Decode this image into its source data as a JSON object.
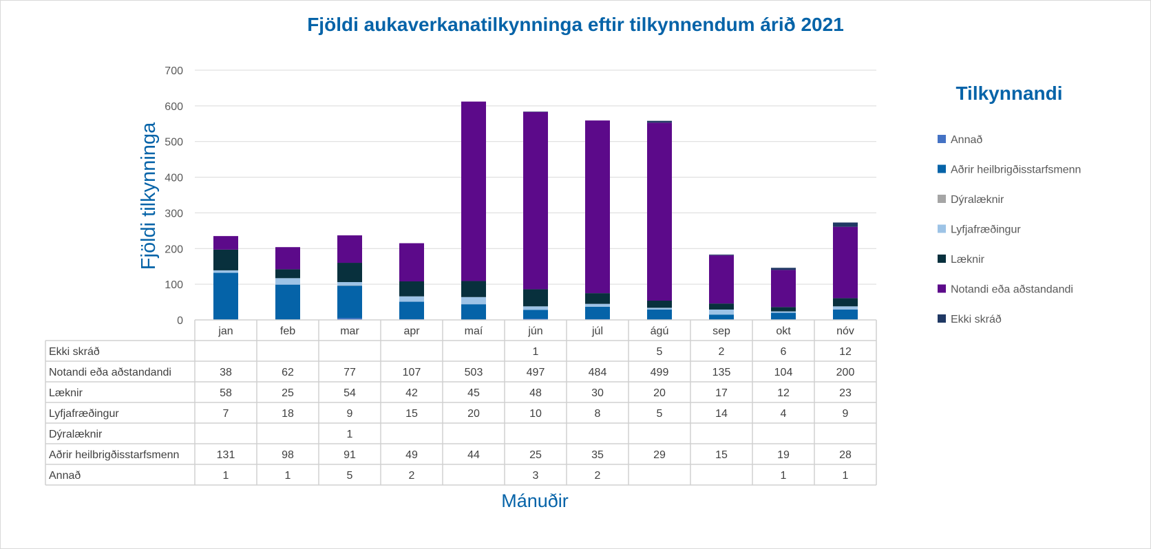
{
  "chart_data": {
    "type": "bar",
    "stacked": true,
    "title": "Fjöldi aukaverkanatilkynninga eftir tilkynnendum árið 2021",
    "xlabel": "Mánuðir",
    "ylabel": "Fjöldi tilkynninga",
    "ylim": [
      0,
      700
    ],
    "yticks": [
      0,
      100,
      200,
      300,
      400,
      500,
      600,
      700
    ],
    "grid": true,
    "legend_title": "Tilkynnandi",
    "legend_position": "right",
    "categories": [
      "jan",
      "feb",
      "mar",
      "apr",
      "maí",
      "jún",
      "júl",
      "ágú",
      "sep",
      "okt",
      "nóv"
    ],
    "series": [
      {
        "name": "Annað",
        "color": "#4472c4",
        "values": [
          1,
          1,
          5,
          2,
          null,
          3,
          2,
          null,
          null,
          1,
          1
        ]
      },
      {
        "name": "Aðrir heilbrigðisstarfsmenn",
        "color": "#0563a8",
        "values": [
          131,
          98,
          91,
          49,
          44,
          25,
          35,
          29,
          15,
          19,
          28
        ]
      },
      {
        "name": "Dýralæknir",
        "color": "#a5a5a5",
        "values": [
          null,
          null,
          1,
          null,
          null,
          null,
          null,
          null,
          null,
          null,
          null
        ]
      },
      {
        "name": "Lyfjafræðingur",
        "color": "#9dc3e6",
        "values": [
          7,
          18,
          9,
          15,
          20,
          10,
          8,
          5,
          14,
          4,
          9
        ]
      },
      {
        "name": "Læknir",
        "color": "#08303d",
        "values": [
          58,
          25,
          54,
          42,
          45,
          48,
          30,
          20,
          17,
          12,
          23
        ]
      },
      {
        "name": "Notandi eða aðstandandi",
        "color": "#5c0a8a",
        "values": [
          38,
          62,
          77,
          107,
          503,
          497,
          484,
          499,
          135,
          104,
          200
        ]
      },
      {
        "name": "Ekki skráð",
        "color": "#203864",
        "values": [
          null,
          null,
          null,
          null,
          null,
          1,
          null,
          5,
          2,
          6,
          12
        ]
      }
    ],
    "table_row_order": [
      "Ekki skráð",
      "Notandi eða aðstandandi",
      "Læknir",
      "Lyfjafræðingur",
      "Dýralæknir",
      "Aðrir heilbrigðisstarfsmenn",
      "Annað"
    ]
  }
}
